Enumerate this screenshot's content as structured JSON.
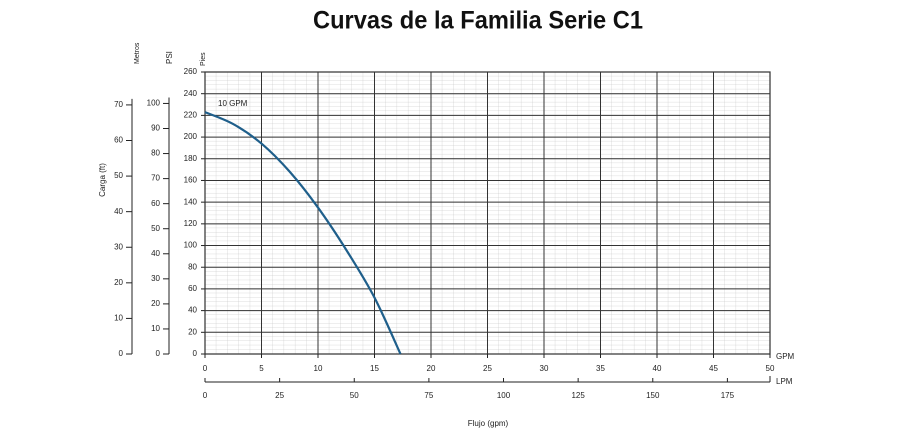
{
  "chart_data": {
    "type": "line",
    "title": "Curvas de la Familia Serie C1",
    "x_label": "Flujo (gpm)",
    "y_label": "Carga (ft)",
    "x": [
      0,
      2.5,
      5,
      7.5,
      10,
      12.5,
      15,
      17.3
    ],
    "series": [
      {
        "name": "10 GPM",
        "color": "#1f5f8b",
        "values": [
          223,
          212,
          194,
          168,
          135,
          96,
          52,
          0
        ]
      }
    ],
    "xlim": [
      0,
      50
    ],
    "xticks": [
      0,
      5,
      10,
      15,
      20,
      25,
      30,
      35,
      40,
      45,
      50
    ],
    "x_unit": "GPM",
    "ylim": [
      0,
      260
    ],
    "yticks": [
      0,
      20,
      40,
      60,
      80,
      100,
      120,
      140,
      160,
      180,
      200,
      220,
      240,
      260
    ],
    "y_unit": "Pies",
    "grid": true,
    "psi_axis": {
      "label": "PSI",
      "lim": [
        0,
        112.55
      ],
      "ticks": [
        0,
        10,
        20,
        30,
        40,
        50,
        60,
        70,
        80,
        90,
        100
      ]
    },
    "metros_axis": {
      "label": "Metros",
      "lim": [
        0,
        79.25
      ],
      "ticks": [
        0,
        10,
        20,
        30,
        40,
        50,
        60,
        70
      ]
    },
    "lpm_axis": {
      "label": "LPM",
      "lim": [
        0,
        189.27
      ],
      "ticks": [
        0,
        25,
        50,
        75,
        100,
        125,
        150,
        175
      ]
    }
  }
}
